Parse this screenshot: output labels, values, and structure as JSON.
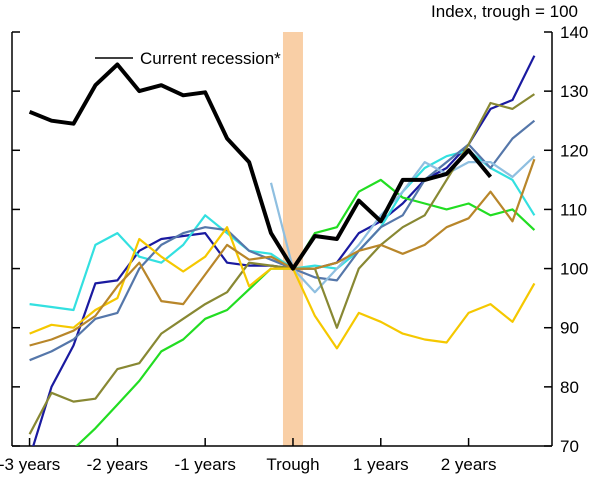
{
  "chart_data": {
    "type": "line",
    "y_label": "Index, trough = 100",
    "x": [
      -12,
      -11,
      -10,
      -9,
      -8,
      -7,
      -6,
      -5,
      -4,
      -3,
      -2,
      -1,
      0,
      1,
      2,
      3,
      4,
      5,
      6,
      7,
      8,
      9,
      10,
      11
    ],
    "xlim": [
      -12.8,
      11.8
    ],
    "xticks": [
      {
        "value": -12,
        "label": "-3 years"
      },
      {
        "value": -8,
        "label": "-2 years"
      },
      {
        "value": -4,
        "label": "-1 years"
      },
      {
        "value": 0,
        "label": "Trough"
      },
      {
        "value": 4,
        "label": "1 years"
      },
      {
        "value": 8,
        "label": "2 years"
      }
    ],
    "ylim": [
      70,
      140
    ],
    "yticks": [
      70,
      80,
      90,
      100,
      110,
      120,
      130,
      140
    ],
    "band_color": "#f9cfa6",
    "series": [
      {
        "color": "#1a1aa0",
        "values": [
          68,
          80,
          87,
          97.5,
          98,
          103,
          105,
          105.5,
          106,
          101,
          100.5,
          100.5,
          100,
          100,
          101,
          106,
          108,
          111,
          115,
          117,
          121,
          127,
          128.5,
          136
        ]
      },
      {
        "color": "#33e0e0",
        "values": [
          94,
          93.5,
          93,
          104,
          106,
          102,
          101,
          104,
          109,
          106,
          103,
          102.5,
          100,
          100.5,
          100,
          103,
          107,
          113,
          117,
          119,
          120,
          117,
          115,
          109
        ]
      },
      {
        "color": "#22dd22",
        "values": [
          66,
          68,
          69.5,
          73,
          77,
          81,
          86,
          88,
          91.5,
          93,
          96.5,
          100,
          100,
          106,
          107,
          113,
          115,
          112,
          111,
          110,
          111,
          109,
          110,
          106.5
        ]
      },
      {
        "color": "#5577aa",
        "values": [
          84.5,
          86,
          88,
          91.5,
          92.5,
          100,
          104,
          106,
          107,
          106.5,
          103,
          101.5,
          100,
          98.5,
          98,
          103,
          107,
          109,
          115,
          118,
          121,
          117,
          122,
          125
        ]
      },
      {
        "color": "#8fbfe0",
        "values": [
          null,
          null,
          null,
          null,
          null,
          null,
          null,
          null,
          null,
          null,
          null,
          114.5,
          100,
          96,
          100,
          104,
          109,
          113,
          118,
          116,
          118,
          118,
          115.5,
          119
        ]
      },
      {
        "color": "#888833",
        "values": [
          72,
          79,
          77.5,
          78,
          83,
          84,
          89,
          91.5,
          94,
          96,
          101,
          100.5,
          100,
          100,
          90,
          100,
          104,
          107,
          109,
          115,
          121,
          128,
          127,
          129.5
        ]
      },
      {
        "color": "#f5c800",
        "values": [
          89,
          90.5,
          90,
          93,
          95,
          105,
          102,
          99.5,
          102,
          107,
          97,
          100,
          100,
          92,
          86.5,
          92.5,
          91,
          89,
          88,
          87.5,
          92.5,
          94,
          91,
          97.5
        ]
      },
      {
        "color": "#b8862a",
        "values": [
          87,
          88,
          89.5,
          92,
          97,
          101,
          94.5,
          94,
          99,
          104,
          101.5,
          102,
          100,
          100,
          101,
          103,
          104,
          102.5,
          104,
          107,
          108.5,
          113,
          108,
          118.5
        ]
      },
      {
        "name": "Current recession*",
        "color": "#000000",
        "values": [
          126.5,
          125,
          124.5,
          131,
          134.5,
          130,
          131,
          129.3,
          129.8,
          122,
          118,
          106,
          100,
          105.5,
          105,
          111.5,
          108,
          115,
          115,
          116,
          120,
          115.5,
          null,
          null
        ]
      }
    ]
  }
}
